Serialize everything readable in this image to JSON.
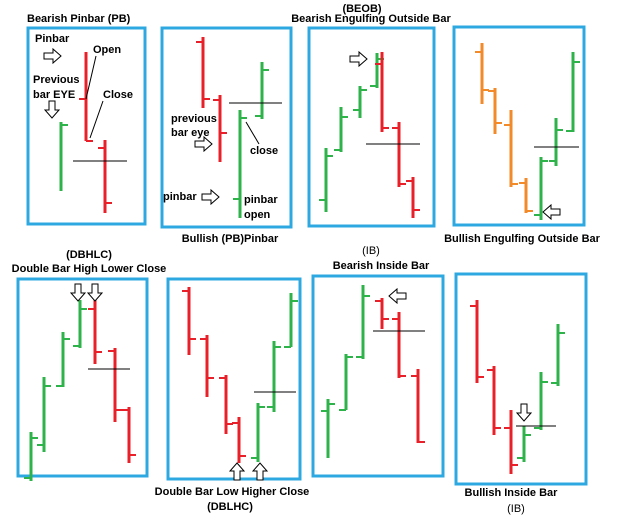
{
  "colors": {
    "bull": "#2db34a",
    "bear": "#e8202a",
    "orange": "#f28a2a",
    "frame": "#2ea8e0",
    "line": "#000000"
  },
  "titles": {
    "pb": "Bearish Pinbar (PB)",
    "beob_abbr": "(BEOB)",
    "beob": "Bearish Engulfing Outside Bar",
    "bullish_pb": "Bullish (PB)Pinbar",
    "ib_abbr_top": "(IB)",
    "bueob": "Bullish Engulfing Outside Bar",
    "dbhlc_abbr": "(DBHLC)",
    "dbhlc": "Double Bar High Lower Close",
    "bearish_ib": "Bearish Inside Bar",
    "dblhc": "Double Bar Low Higher Close",
    "dblhc_abbr": "(DBLHC)",
    "bullish_ib": "Bullish Inside Bar",
    "ib_abbr_bottom": "(IB)"
  },
  "annotations": {
    "pinbar": "Pinbar",
    "open": "Open",
    "previous": "Previous",
    "bar_eye": "bar EYE",
    "close": "Close",
    "previous_lc": "previous",
    "bar_eye_lc": "bar eye",
    "close_lc": "close",
    "pinbar_lc": "pinbar",
    "pinbar_open_1": "pinbar",
    "pinbar_open_2": "open"
  },
  "panels": [
    {
      "id": "bearish-pinbar",
      "bars": [
        {
          "c": "bull",
          "x": 61,
          "h": 122,
          "l": 191,
          "o": 0,
          "cl": 125
        },
        {
          "c": "bear",
          "x": 86,
          "h": 52,
          "l": 141,
          "o": 99,
          "cl": 141
        },
        {
          "c": "bear",
          "x": 105,
          "h": 140,
          "l": 213,
          "o": 148,
          "cl": 203
        }
      ],
      "lines": [
        {
          "x1": 73,
          "x2": 127,
          "y": 161
        }
      ]
    },
    {
      "id": "bullish-pinbar",
      "bars": [
        {
          "c": "bear",
          "x": 203,
          "h": 37,
          "l": 108,
          "o": 42,
          "cl": 99
        },
        {
          "c": "bear",
          "x": 220,
          "h": 95,
          "l": 162,
          "o": 100,
          "cl": 133
        },
        {
          "c": "bull",
          "x": 240,
          "h": 110,
          "l": 218,
          "o": 199,
          "cl": 118
        },
        {
          "c": "bull",
          "x": 262,
          "h": 62,
          "l": 119,
          "o": 116,
          "cl": 70
        }
      ],
      "lines": [
        {
          "x1": 229,
          "x2": 282,
          "y": 103
        }
      ]
    },
    {
      "id": "bearish-engulfing",
      "bars": [
        {
          "c": "bull",
          "x": 326,
          "h": 148,
          "l": 212,
          "o": 200,
          "cl": 156
        },
        {
          "c": "bull",
          "x": 341,
          "h": 107,
          "l": 152,
          "o": 150,
          "cl": 117
        },
        {
          "c": "bull",
          "x": 360,
          "h": 86,
          "l": 118,
          "o": 110,
          "cl": 90
        },
        {
          "c": "bull",
          "x": 377,
          "h": 53,
          "l": 88,
          "o": 86,
          "cl": 59
        },
        {
          "c": "bear",
          "x": 382,
          "h": 52,
          "l": 132,
          "o": 64,
          "cl": 128
        },
        {
          "c": "bear",
          "x": 399,
          "h": 122,
          "l": 187,
          "o": 128,
          "cl": 184
        },
        {
          "c": "bear",
          "x": 413,
          "h": 177,
          "l": 218,
          "o": 181,
          "cl": 210
        }
      ],
      "lines": [
        {
          "x1": 366,
          "x2": 420,
          "y": 144
        }
      ]
    },
    {
      "id": "bullish-engulfing",
      "bars": [
        {
          "c": "orange",
          "x": 482,
          "h": 43,
          "l": 104,
          "o": 52,
          "cl": 90
        },
        {
          "c": "orange",
          "x": 495,
          "h": 88,
          "l": 134,
          "o": 91,
          "cl": 123
        },
        {
          "c": "orange",
          "x": 511,
          "h": 110,
          "l": 187,
          "o": 125,
          "cl": 184
        },
        {
          "c": "orange",
          "x": 526,
          "h": 178,
          "l": 213,
          "o": 183,
          "cl": 211
        },
        {
          "c": "bull",
          "x": 541,
          "h": 157,
          "l": 220,
          "o": 215,
          "cl": 161
        },
        {
          "c": "bull",
          "x": 556,
          "h": 118,
          "l": 166,
          "o": 161,
          "cl": 130
        },
        {
          "c": "bull",
          "x": 573,
          "h": 52,
          "l": 132,
          "o": 131,
          "cl": 62
        }
      ],
      "lines": [
        {
          "x1": 534,
          "x2": 579,
          "y": 147
        }
      ]
    },
    {
      "id": "dbhlc",
      "bars": [
        {
          "c": "bull",
          "x": 31,
          "h": 432,
          "l": 481,
          "o": 478,
          "cl": 438
        },
        {
          "c": "bull",
          "x": 44,
          "h": 377,
          "l": 452,
          "o": 445,
          "cl": 386
        },
        {
          "c": "bull",
          "x": 63,
          "h": 332,
          "l": 387,
          "o": 386,
          "cl": 339
        },
        {
          "c": "bull",
          "x": 80,
          "h": 300,
          "l": 348,
          "o": 346,
          "cl": 309
        },
        {
          "c": "bear",
          "x": 95,
          "h": 300,
          "l": 364,
          "o": 309,
          "cl": 352
        },
        {
          "c": "bear",
          "x": 115,
          "h": 348,
          "l": 422,
          "o": 351,
          "cl": 410
        },
        {
          "c": "bear",
          "x": 129,
          "h": 407,
          "l": 463,
          "o": 410,
          "cl": 455
        }
      ],
      "lines": [
        {
          "x1": 88,
          "x2": 130,
          "y": 369
        }
      ]
    },
    {
      "id": "dblhc",
      "bars": [
        {
          "c": "bear",
          "x": 189,
          "h": 287,
          "l": 355,
          "o": 291,
          "cl": 339
        },
        {
          "c": "bear",
          "x": 207,
          "h": 335,
          "l": 397,
          "o": 339,
          "cl": 378
        },
        {
          "c": "bear",
          "x": 226,
          "h": 375,
          "l": 434,
          "o": 378,
          "cl": 424
        },
        {
          "c": "bear",
          "x": 239,
          "h": 417,
          "l": 463,
          "o": 423,
          "cl": 456
        },
        {
          "c": "bull",
          "x": 258,
          "h": 403,
          "l": 462,
          "o": 458,
          "cl": 407
        },
        {
          "c": "bull",
          "x": 274,
          "h": 341,
          "l": 412,
          "o": 407,
          "cl": 347
        },
        {
          "c": "bull",
          "x": 291,
          "h": 293,
          "l": 347,
          "o": 347,
          "cl": 301
        }
      ],
      "lines": [
        {
          "x1": 254,
          "x2": 296,
          "y": 392
        }
      ]
    },
    {
      "id": "bearish-inside",
      "bars": [
        {
          "c": "bull",
          "x": 328,
          "h": 399,
          "l": 458,
          "o": 411,
          "cl": 404
        },
        {
          "c": "bull",
          "x": 346,
          "h": 354,
          "l": 410,
          "o": 410,
          "cl": 357
        },
        {
          "c": "bull",
          "x": 363,
          "h": 285,
          "l": 359,
          "o": 357,
          "cl": 296
        },
        {
          "c": "bear",
          "x": 382,
          "h": 298,
          "l": 329,
          "o": 301,
          "cl": 319
        },
        {
          "c": "bear",
          "x": 399,
          "h": 312,
          "l": 378,
          "o": 319,
          "cl": 376
        },
        {
          "c": "bear",
          "x": 418,
          "h": 369,
          "l": 443,
          "o": 376,
          "cl": 442
        }
      ],
      "lines": [
        {
          "x1": 373,
          "x2": 425,
          "y": 331
        }
      ]
    },
    {
      "id": "bullish-inside",
      "bars": [
        {
          "c": "bear",
          "x": 477,
          "h": 300,
          "l": 383,
          "o": 306,
          "cl": 377
        },
        {
          "c": "bear",
          "x": 494,
          "h": 366,
          "l": 435,
          "o": 370,
          "cl": 428
        },
        {
          "c": "bear",
          "x": 511,
          "h": 410,
          "l": 474,
          "o": 428,
          "cl": 465
        },
        {
          "c": "bull",
          "x": 524,
          "h": 426,
          "l": 462,
          "o": 458,
          "cl": 435
        },
        {
          "c": "bull",
          "x": 541,
          "h": 372,
          "l": 430,
          "o": 428,
          "cl": 382
        },
        {
          "c": "bull",
          "x": 558,
          "h": 324,
          "l": 386,
          "o": 383,
          "cl": 333
        }
      ],
      "lines": [
        {
          "x1": 516,
          "x2": 556,
          "y": 426
        }
      ]
    }
  ]
}
